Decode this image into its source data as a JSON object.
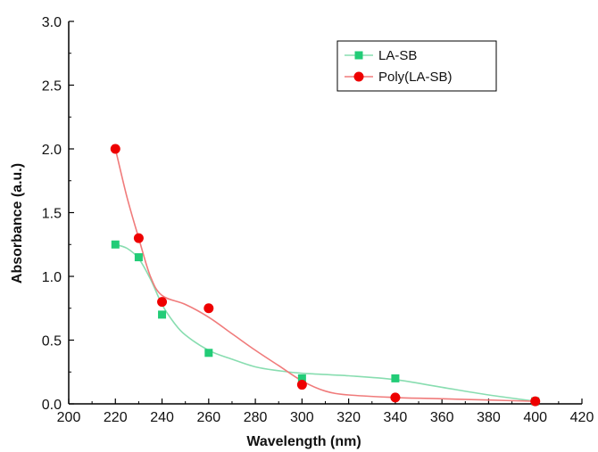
{
  "chart_data": {
    "type": "scatter",
    "title": "",
    "xlabel": "Wavelength (nm)",
    "ylabel": "Absorbance (a.u.)",
    "xlim": [
      200,
      420
    ],
    "ylim": [
      0.0,
      3.0
    ],
    "xticks": [
      200,
      220,
      240,
      260,
      280,
      300,
      320,
      340,
      360,
      380,
      400,
      420
    ],
    "yticks": [
      0.0,
      0.5,
      1.0,
      1.5,
      2.0,
      2.5,
      3.0
    ],
    "ytick_labels": [
      "0.0",
      "0.5",
      "1.0",
      "1.5",
      "2.0",
      "2.5",
      "3.0"
    ],
    "grid": false,
    "legend_position": "top-right",
    "series": [
      {
        "name": "LA-SB",
        "color": "#22cc77",
        "line_color": "#88ddb0",
        "marker": "square",
        "x": [
          220,
          230,
          240,
          260,
          300,
          340,
          400
        ],
        "y": [
          1.25,
          1.15,
          0.7,
          0.4,
          0.2,
          0.2,
          0.02
        ],
        "curve": [
          [
            220,
            1.25
          ],
          [
            225,
            1.22
          ],
          [
            230,
            1.14
          ],
          [
            235,
            0.98
          ],
          [
            240,
            0.78
          ],
          [
            245,
            0.64
          ],
          [
            250,
            0.54
          ],
          [
            260,
            0.42
          ],
          [
            270,
            0.35
          ],
          [
            280,
            0.29
          ],
          [
            290,
            0.26
          ],
          [
            300,
            0.24
          ],
          [
            320,
            0.22
          ],
          [
            340,
            0.19
          ],
          [
            360,
            0.13
          ],
          [
            380,
            0.07
          ],
          [
            400,
            0.02
          ]
        ]
      },
      {
        "name": "Poly(LA-SB)",
        "color": "#ee0000",
        "line_color": "#f07b7b",
        "marker": "circle",
        "x": [
          220,
          230,
          240,
          260,
          300,
          340,
          400
        ],
        "y": [
          2.0,
          1.3,
          0.8,
          0.75,
          0.15,
          0.05,
          0.02
        ],
        "curve": [
          [
            220,
            2.0
          ],
          [
            225,
            1.62
          ],
          [
            230,
            1.3
          ],
          [
            235,
            1.0
          ],
          [
            240,
            0.85
          ],
          [
            250,
            0.78
          ],
          [
            260,
            0.68
          ],
          [
            270,
            0.55
          ],
          [
            280,
            0.42
          ],
          [
            290,
            0.3
          ],
          [
            300,
            0.18
          ],
          [
            310,
            0.1
          ],
          [
            320,
            0.07
          ],
          [
            340,
            0.05
          ],
          [
            360,
            0.04
          ],
          [
            380,
            0.03
          ],
          [
            400,
            0.02
          ]
        ]
      }
    ]
  }
}
